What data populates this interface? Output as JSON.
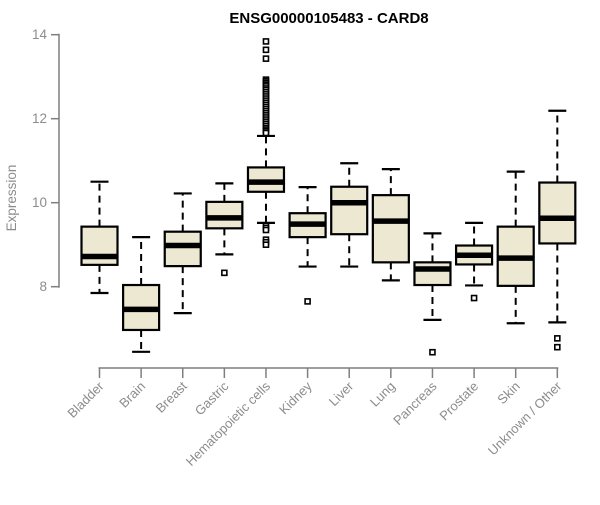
{
  "chart_data": {
    "type": "boxplot",
    "title": "ENSG00000105483 - CARD8",
    "ylabel": "Expression",
    "xlabel": "",
    "y_ticks": [
      8,
      10,
      12,
      14
    ],
    "y_axis_range": [
      8,
      14
    ],
    "grid": "off",
    "legend": "none",
    "categories": [
      "Bladder",
      "Brain",
      "Breast",
      "Gastric",
      "Hematopoietic cells",
      "Kidney",
      "Liver",
      "Lung",
      "Pancreas",
      "Prostate",
      "Skin",
      "Unknown / Other"
    ],
    "boxes": [
      {
        "label": "Bladder",
        "whisker_low": 7.85,
        "q1": 8.52,
        "median": 8.72,
        "q3": 9.43,
        "whisker_high": 10.5,
        "outliers": []
      },
      {
        "label": "Brain",
        "whisker_low": 6.45,
        "q1": 6.97,
        "median": 7.46,
        "q3": 8.04,
        "whisker_high": 9.18,
        "outliers": []
      },
      {
        "label": "Breast",
        "whisker_low": 7.37,
        "q1": 8.49,
        "median": 8.98,
        "q3": 9.31,
        "whisker_high": 10.22,
        "outliers": []
      },
      {
        "label": "Gastric",
        "whisker_low": 8.77,
        "q1": 9.39,
        "median": 9.64,
        "q3": 10.02,
        "whisker_high": 10.46,
        "outliers": [
          8.33
        ]
      },
      {
        "label": "Hematopoietic cells",
        "whisker_low": 9.52,
        "q1": 10.26,
        "median": 10.49,
        "q3": 10.84,
        "whisker_high": 11.59,
        "outliers": [
          13.84,
          13.64,
          13.43,
          12.93,
          12.89,
          12.85,
          12.81,
          12.77,
          12.72,
          12.68,
          12.63,
          12.58,
          12.53,
          12.48,
          12.43,
          12.38,
          12.33,
          12.28,
          12.23,
          12.18,
          12.13,
          12.08,
          12.03,
          11.98,
          11.93,
          11.88,
          11.83,
          11.78,
          11.74,
          11.7,
          11.66,
          9.45,
          9.4,
          9.35,
          9.12,
          9.06,
          9.0
        ]
      },
      {
        "label": "Kidney",
        "whisker_low": 8.48,
        "q1": 9.18,
        "median": 9.49,
        "q3": 9.75,
        "whisker_high": 10.37,
        "outliers": [
          7.65
        ]
      },
      {
        "label": "Liver",
        "whisker_low": 8.48,
        "q1": 9.25,
        "median": 10.0,
        "q3": 10.38,
        "whisker_high": 10.94,
        "outliers": []
      },
      {
        "label": "Lung",
        "whisker_low": 8.15,
        "q1": 8.58,
        "median": 9.56,
        "q3": 10.18,
        "whisker_high": 10.8,
        "outliers": []
      },
      {
        "label": "Pancreas",
        "whisker_low": 7.21,
        "q1": 8.04,
        "median": 8.42,
        "q3": 8.58,
        "whisker_high": 9.27,
        "outliers": [
          6.44
        ]
      },
      {
        "label": "Prostate",
        "whisker_low": 8.03,
        "q1": 8.53,
        "median": 8.75,
        "q3": 8.98,
        "whisker_high": 9.52,
        "outliers": [
          7.73
        ]
      },
      {
        "label": "Skin",
        "whisker_low": 7.13,
        "q1": 8.02,
        "median": 8.68,
        "q3": 9.43,
        "whisker_high": 10.74,
        "outliers": []
      },
      {
        "label": "Unknown / Other",
        "whisker_low": 7.15,
        "q1": 9.03,
        "median": 9.63,
        "q3": 10.48,
        "whisker_high": 12.19,
        "outliers": [
          6.77,
          6.56
        ]
      }
    ],
    "colors": {
      "box_fill": "#EDE8D1",
      "box_stroke": "#000000",
      "median_stroke": "#000000",
      "whisker_stroke": "#000000",
      "outlier_stroke": "#000000",
      "axis_line": "#7f7f7f",
      "axis_text": "#8c8c8c",
      "title_text": "#000000"
    }
  }
}
